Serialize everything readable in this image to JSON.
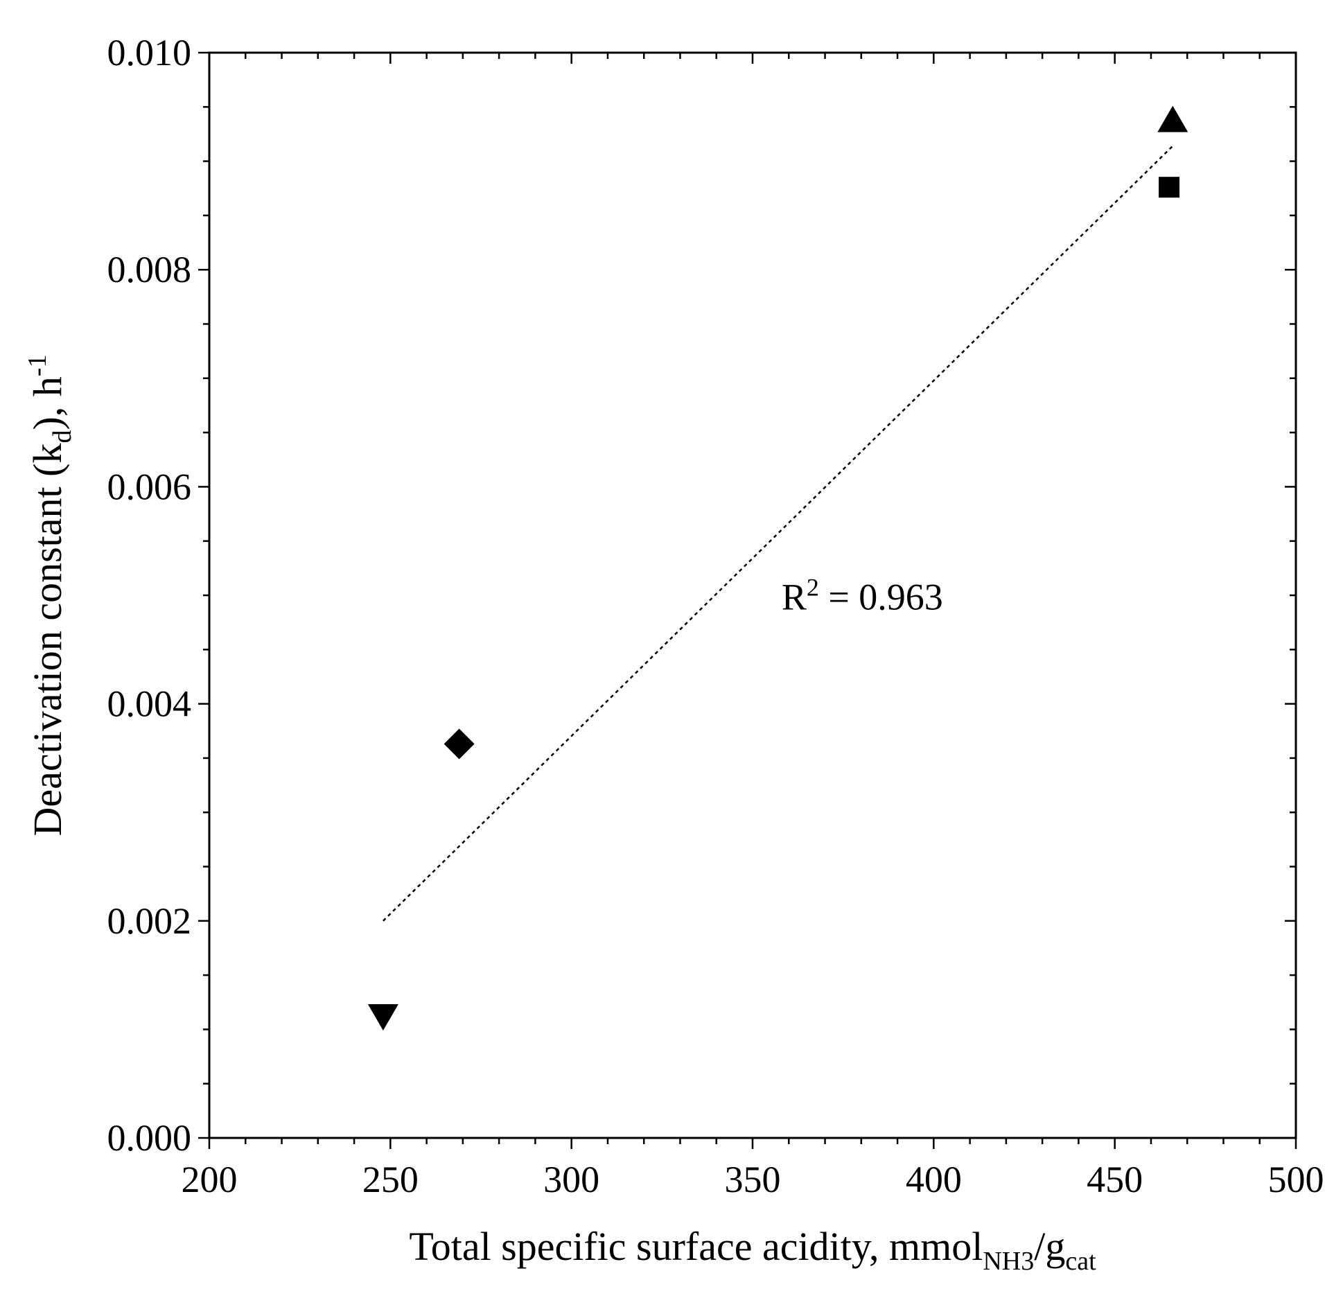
{
  "chart_data": {
    "type": "scatter",
    "title": "",
    "xlabel": {
      "main": "Total specific surface acidity, mmol",
      "sub1": "NH3",
      "slash": "/g",
      "sub2": "cat"
    },
    "ylabel": {
      "main": "Deactivation constant (k",
      "sub": "d",
      "mid": "), h",
      "sup": "-1"
    },
    "xlim": [
      200,
      500
    ],
    "ylim": [
      0,
      0.01
    ],
    "x_major_ticks": [
      200,
      250,
      300,
      350,
      400,
      450,
      500
    ],
    "x_tick_labels": [
      "200",
      "250",
      "300",
      "350",
      "400",
      "450",
      "500"
    ],
    "x_minor_step": 10,
    "y_major_ticks": [
      0,
      0.002,
      0.004,
      0.006,
      0.008,
      0.01
    ],
    "y_tick_labels": [
      "0.000",
      "0.002",
      "0.004",
      "0.006",
      "0.008",
      "0.010"
    ],
    "y_minor_step": 0.0005,
    "grid": false,
    "series": [
      {
        "name": "triangle-up",
        "marker": "triangle-up",
        "x": 466,
        "y": 0.00937
      },
      {
        "name": "square",
        "marker": "square",
        "x": 465,
        "y": 0.00876
      },
      {
        "name": "diamond",
        "marker": "diamond",
        "x": 269,
        "y": 0.00363
      },
      {
        "name": "triangle-down",
        "marker": "triangle-down",
        "x": 248,
        "y": 0.00113
      }
    ],
    "trendline": {
      "style": "dashed",
      "x": [
        248,
        466
      ],
      "y": [
        0.002,
        0.00914
      ]
    },
    "annotation": {
      "base": "R",
      "sup": "2",
      "rest": " = 0.963",
      "x": 358,
      "y": 0.00487
    },
    "colors": {
      "ink": "#000000",
      "background": "#ffffff"
    }
  }
}
